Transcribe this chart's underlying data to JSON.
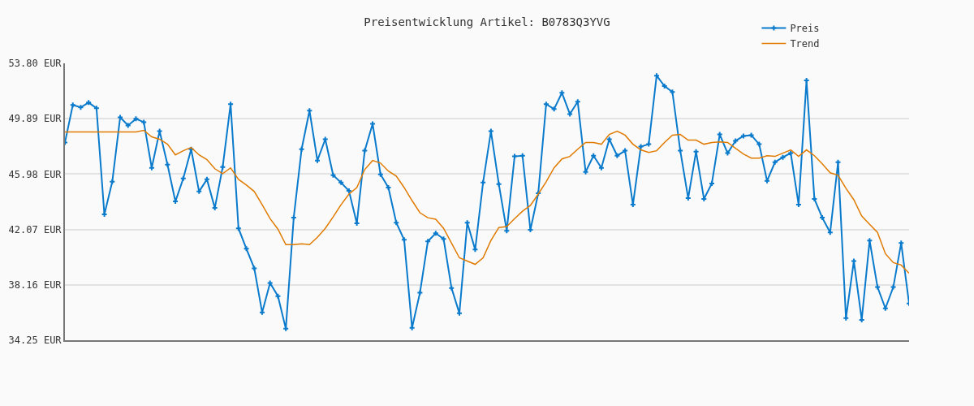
{
  "chart_data": {
    "type": "line",
    "title": "Preisentwicklung Artikel: B0783Q3YVG",
    "categories": [
      null,
      null,
      null,
      null,
      null,
      null,
      null,
      null,
      null,
      null,
      null,
      null,
      null,
      null,
      null,
      null,
      null,
      null,
      null,
      null,
      null,
      null,
      null,
      null,
      null,
      null,
      null,
      null,
      null,
      null,
      null,
      null,
      null,
      null,
      null,
      null,
      null,
      null,
      null,
      null,
      null,
      null,
      null,
      null,
      null,
      null,
      null,
      null,
      null,
      null,
      null,
      null,
      null,
      null,
      null,
      null,
      null,
      null,
      null,
      null,
      null,
      null,
      null,
      null,
      null,
      null,
      null,
      null,
      null,
      null,
      null,
      null,
      null,
      null,
      null,
      null,
      null,
      null,
      null,
      null,
      null,
      null,
      null,
      null,
      null,
      null,
      null,
      null,
      null,
      null,
      null,
      null,
      null,
      null,
      null,
      null,
      null,
      null,
      null,
      null,
      null,
      null,
      null,
      null,
      null,
      null,
      null,
      null
    ],
    "series": [
      {
        "name": "Preis",
        "color": "#0a7bcc",
        "marker": "cross",
        "values": [
          48.21,
          50.86,
          50.69,
          51.03,
          50.63,
          43.13,
          45.44,
          49.99,
          49.42,
          49.88,
          49.65,
          46.42,
          49.01,
          46.65,
          44.05,
          45.67,
          47.74,
          44.75,
          45.61,
          43.59,
          46.48,
          50.92,
          42.15,
          40.71,
          39.33,
          36.21,
          38.29,
          37.36,
          35.06,
          42.9,
          47.74,
          50.46,
          46.94,
          48.44,
          45.9,
          45.38,
          44.8,
          42.5,
          47.63,
          49.53,
          45.96,
          45.03,
          42.55,
          41.34,
          35.12,
          37.6,
          41.23,
          41.8,
          41.4,
          37.94,
          36.15,
          42.55,
          40.65,
          45.38,
          49.01,
          45.27,
          41.98,
          47.23,
          47.28,
          42.04,
          44.63,
          50.92,
          50.57,
          51.72,
          50.22,
          51.09,
          46.13,
          47.28,
          46.42,
          48.44,
          47.28,
          47.63,
          43.82,
          47.92,
          48.09,
          52.93,
          52.19,
          51.78,
          47.63,
          44.28,
          47.57,
          44.23,
          45.32,
          48.78,
          47.46,
          48.32,
          48.67,
          48.73,
          48.09,
          45.5,
          46.82,
          47.17,
          47.46,
          43.82,
          52.59,
          44.23,
          42.9,
          41.86,
          46.82,
          35.81,
          39.84,
          35.69,
          41.29,
          38.0,
          36.5,
          38.0,
          41.11,
          36.85
        ]
      },
      {
        "name": "Trend",
        "color": "#e07b00",
        "marker": "none",
        "values": [
          48.96,
          48.96,
          48.96,
          48.96,
          48.96,
          48.96,
          48.96,
          48.96,
          48.96,
          48.96,
          49.07,
          48.61,
          48.44,
          48.09,
          47.34,
          47.63,
          47.86,
          47.34,
          47.0,
          46.36,
          46.01,
          46.42,
          45.61,
          45.21,
          44.75,
          43.82,
          42.84,
          42.09,
          41.0,
          41.0,
          41.06,
          41.0,
          41.52,
          42.15,
          42.96,
          43.82,
          44.57,
          45.03,
          46.3,
          46.94,
          46.76,
          46.19,
          45.84,
          45.03,
          44.11,
          43.25,
          42.9,
          42.79,
          42.15,
          41.11,
          40.07,
          39.84,
          39.61,
          40.07,
          41.29,
          42.21,
          42.27,
          42.84,
          43.36,
          43.77,
          44.57,
          45.44,
          46.42,
          47.05,
          47.23,
          47.74,
          48.21,
          48.21,
          48.09,
          48.78,
          49.01,
          48.73,
          48.09,
          47.69,
          47.51,
          47.63,
          48.21,
          48.73,
          48.78,
          48.38,
          48.38,
          48.09,
          48.21,
          48.26,
          48.21,
          47.8,
          47.4,
          47.11,
          47.11,
          47.28,
          47.23,
          47.46,
          47.69,
          47.23,
          47.69,
          47.28,
          46.71,
          46.07,
          45.9,
          44.98,
          44.17,
          43.02,
          42.44,
          41.86,
          40.36,
          39.73,
          39.56,
          38.98
        ]
      }
    ],
    "ylim": [
      34.25,
      53.8
    ],
    "yticks": [
      {
        "value": 34.25,
        "label": "34.25 EUR"
      },
      {
        "value": 38.16,
        "label": "38.16 EUR"
      },
      {
        "value": 42.07,
        "label": "42.07 EUR"
      },
      {
        "value": 45.98,
        "label": "45.98 EUR"
      },
      {
        "value": 49.89,
        "label": "49.89 EUR"
      },
      {
        "value": 53.8,
        "label": "53.80 EUR"
      }
    ],
    "grid": "y",
    "legend": "top right",
    "line_style": "solid"
  }
}
